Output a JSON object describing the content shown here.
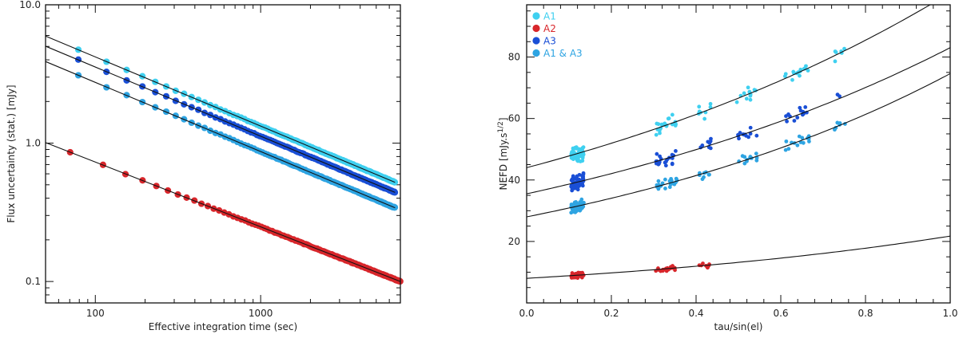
{
  "chart_data": [
    {
      "type": "scatter",
      "scale": "log-log",
      "title": "",
      "xlabel": "Effective integration time (sec)",
      "ylabel": "Flux uncertainty (stat.) [mJy]",
      "xlim": [
        50,
        7000
      ],
      "ylim": [
        0.07,
        10
      ],
      "x_ticks": [
        {
          "value": 100,
          "label": "100"
        },
        {
          "value": 1000,
          "label": "1000"
        }
      ],
      "y_ticks": [
        {
          "value": 0.1,
          "label": "0.1"
        },
        {
          "value": 1,
          "label": "1.0"
        },
        {
          "value": 10,
          "label": "10.0"
        }
      ],
      "series": [
        {
          "name": "A1",
          "color": "#3fd0f0",
          "value_at_1s": 42,
          "exponent": -0.5,
          "x_range": [
            60,
            6500
          ]
        },
        {
          "name": "A3",
          "color": "#1a4fd6",
          "value_at_1s": 35.5,
          "exponent": -0.5,
          "x_range": [
            60,
            6500
          ]
        },
        {
          "name": "A1 & A3",
          "color": "#2ea4e2",
          "value_at_1s": 27.5,
          "exponent": -0.5,
          "x_range": [
            60,
            6500
          ]
        },
        {
          "name": "A2",
          "color": "#d8262b",
          "value_at_1s": 6.3,
          "exponent": -0.468,
          "x_range": [
            50,
            7000
          ]
        }
      ]
    },
    {
      "type": "scatter",
      "title": "",
      "xlabel": "tau/sin(el)",
      "ylabel": "NEFD [mJy.s",
      "ylabel_sup": "1/2",
      "ylabel_end": "]",
      "xlim": [
        0.0,
        1.0
      ],
      "ylim": [
        0,
        97
      ],
      "x_ticks": [
        {
          "value": 0,
          "label": "0.0"
        },
        {
          "value": 0.2,
          "label": "0.2"
        },
        {
          "value": 0.4,
          "label": "0.4"
        },
        {
          "value": 0.6,
          "label": "0.6"
        },
        {
          "value": 0.8,
          "label": "0.8"
        },
        {
          "value": 1.0,
          "label": "1.0"
        }
      ],
      "y_ticks": [
        {
          "value": 20,
          "label": "20"
        },
        {
          "value": 40,
          "label": "40"
        },
        {
          "value": 60,
          "label": "60"
        },
        {
          "value": 80,
          "label": "80"
        }
      ],
      "legend_position": "top-left",
      "legend": [
        {
          "label": "A1",
          "color": "#3fd0f0"
        },
        {
          "label": "A2",
          "color": "#d8262b"
        },
        {
          "label": "A3",
          "color": "#1a4fd6"
        },
        {
          "label": "A1 & A3",
          "color": "#2ea4e2"
        }
      ],
      "series": [
        {
          "name": "A1",
          "color": "#3fd0f0",
          "fit_base": 44,
          "fit_rate": 0.83,
          "scatter": 1.8,
          "x_max": 0.77
        },
        {
          "name": "A3",
          "color": "#1a4fd6",
          "fit_base": 35.5,
          "fit_rate": 0.85,
          "scatter": 1.8,
          "x_max": 0.74
        },
        {
          "name": "A1 & A3",
          "color": "#2ea4e2",
          "fit_base": 28,
          "fit_rate": 0.98,
          "scatter": 1.3,
          "x_max": 0.77
        },
        {
          "name": "A2",
          "color": "#d8262b",
          "fit_base": 8,
          "fit_rate": 1.0,
          "scatter": 0.6,
          "x_max": 0.44
        }
      ],
      "x_clusters": [
        {
          "center": 0.12,
          "width": 0.03,
          "count": 60
        },
        {
          "center": 0.33,
          "width": 0.05,
          "count": 22
        },
        {
          "center": 0.42,
          "width": 0.03,
          "count": 8
        },
        {
          "center": 0.52,
          "width": 0.05,
          "count": 12
        },
        {
          "center": 0.64,
          "width": 0.06,
          "count": 14
        },
        {
          "center": 0.74,
          "width": 0.03,
          "count": 6
        }
      ]
    }
  ]
}
